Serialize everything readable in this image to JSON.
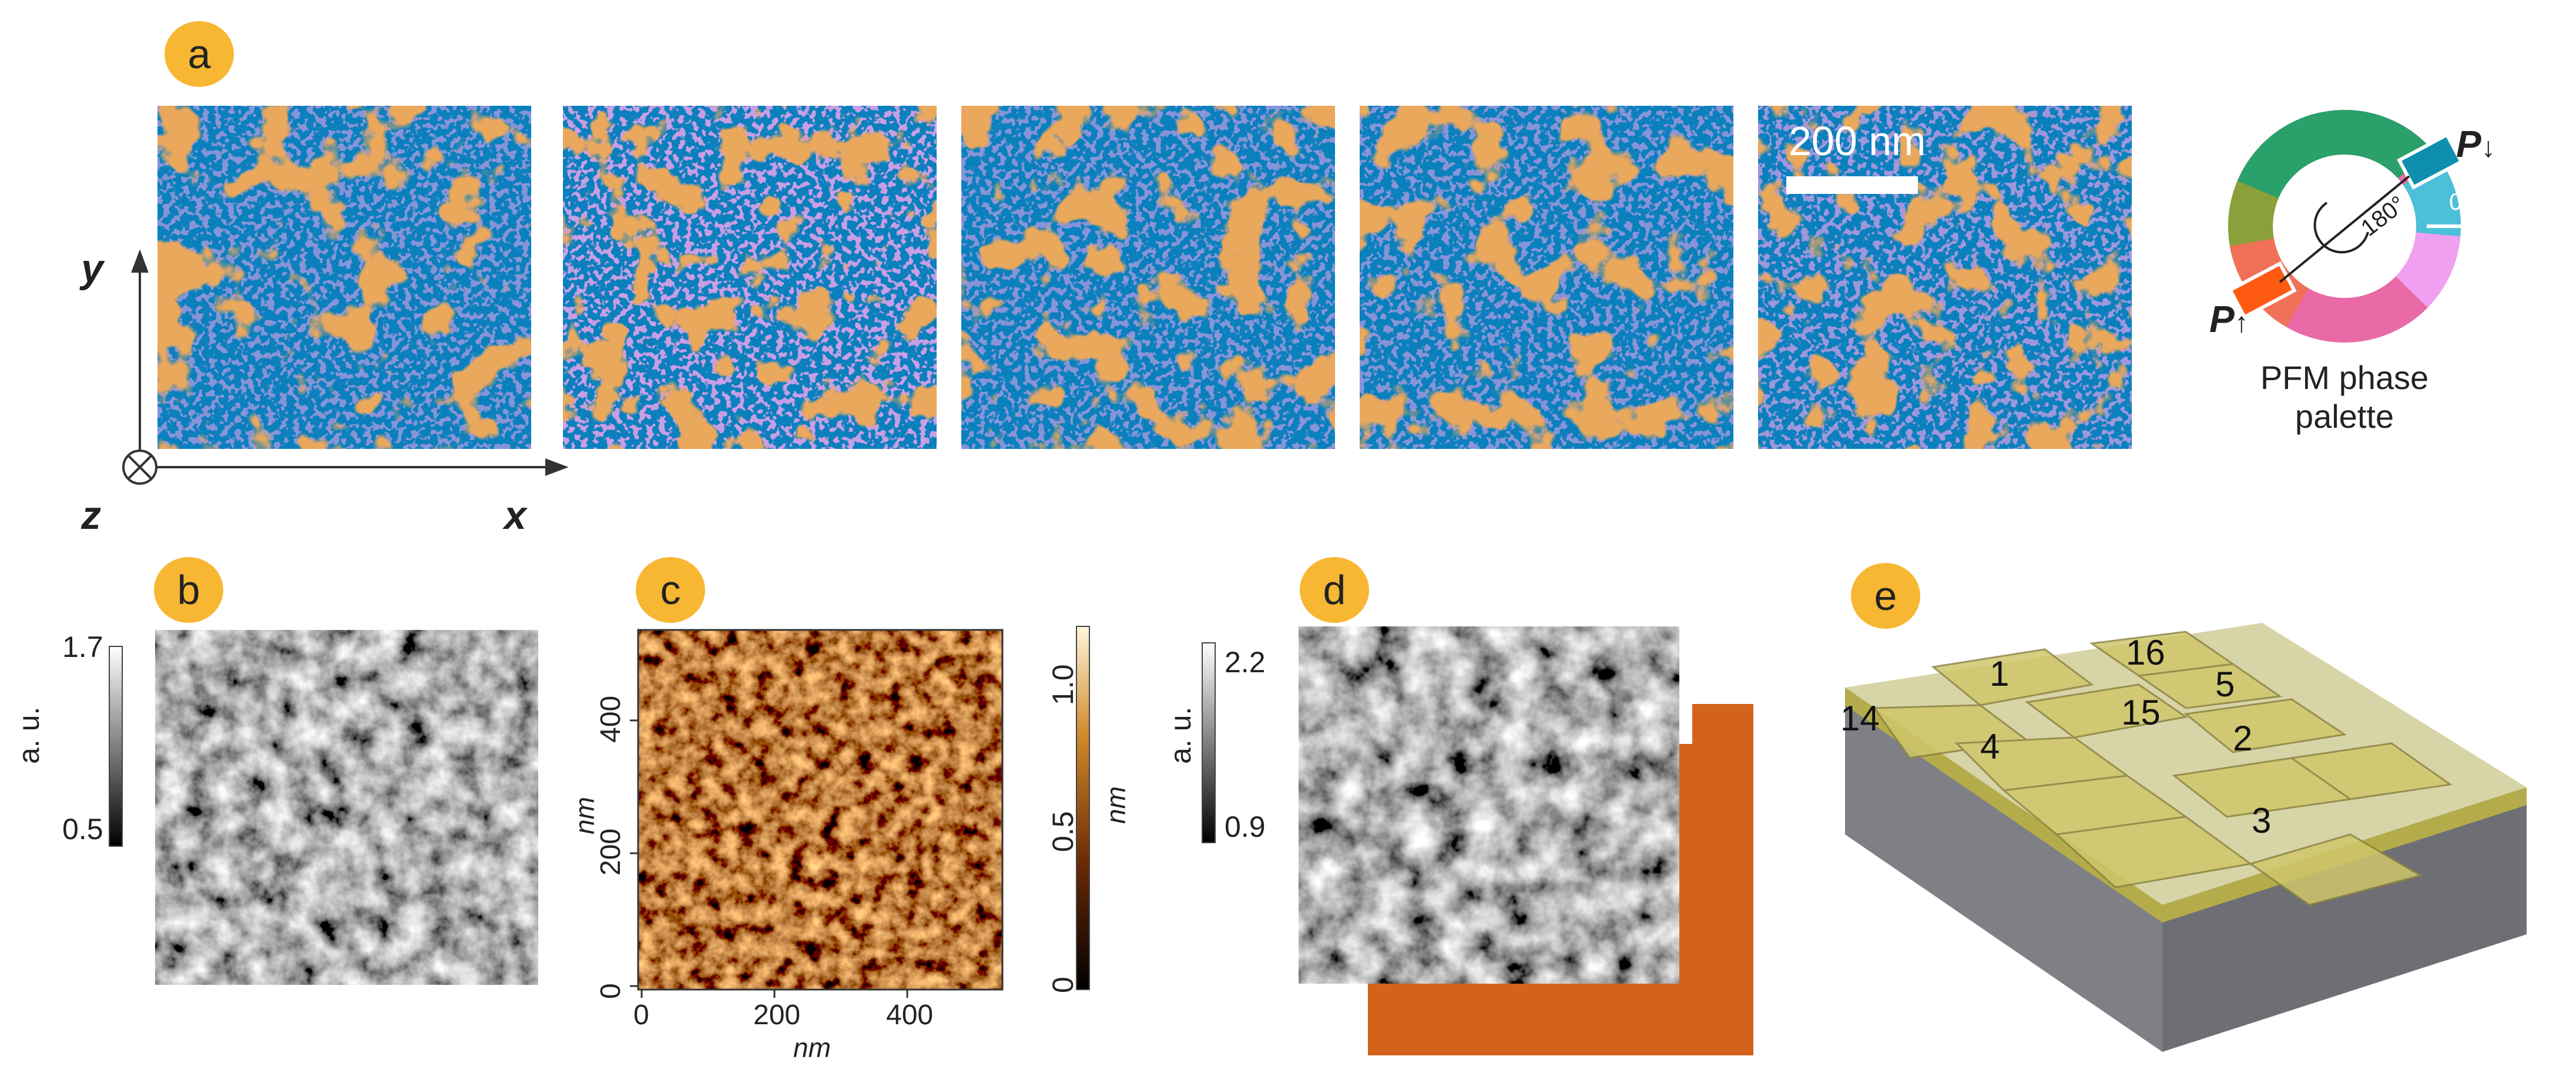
{
  "panels": {
    "a": {
      "badge": "a",
      "scale_bar_label": "200 nm",
      "axes": {
        "y": "y",
        "x": "x",
        "z": "z"
      },
      "palette": {
        "label_line1": "PFM phase",
        "label_line2": "palette",
        "angle_0": "0°",
        "angle_180": "180°",
        "p_up": "P",
        "p_down": "P"
      }
    },
    "b": {
      "badge": "b",
      "colorbar": {
        "unit": "a. u.",
        "max": "1.7",
        "min": "0.5"
      }
    },
    "c": {
      "badge": "c",
      "x_ticks": [
        "0",
        "200",
        "400"
      ],
      "x_label": "nm",
      "y_ticks": [
        "0",
        "200",
        "400"
      ],
      "y_label": "nm",
      "colorbar": {
        "unit": "nm",
        "ticks": [
          "0",
          "0.5",
          "1.0"
        ]
      }
    },
    "d": {
      "badge": "d",
      "colorbar": {
        "unit": "a. u.",
        "max": "2.2",
        "min": "0.9"
      }
    },
    "e": {
      "badge": "e",
      "grain_labels": [
        "1",
        "16",
        "5",
        "14",
        "15",
        "4",
        "2",
        "3"
      ]
    }
  },
  "colors": {
    "badge": "#f7b733",
    "domain_blue": "#0a80bd",
    "domain_orange": "#d3631b",
    "boundary_purple": "#b45ad0"
  }
}
